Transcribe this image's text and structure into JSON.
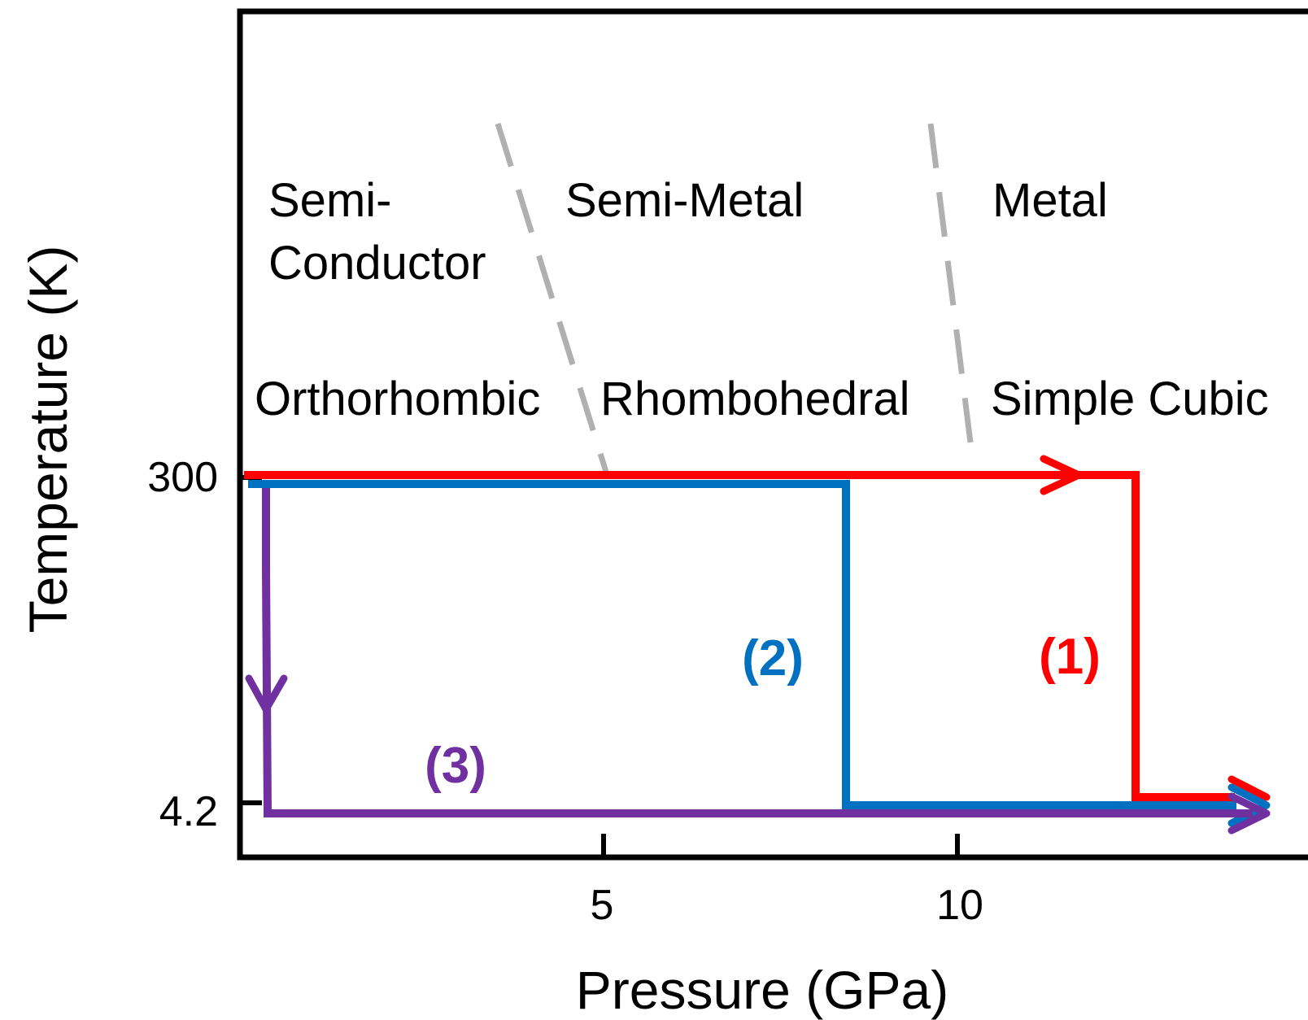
{
  "axes": {
    "x_title": "Pressure (GPa)",
    "y_title": "Temperature (K)",
    "x_ticks": [
      "5",
      "10"
    ],
    "y_ticks": [
      "300",
      "4.2"
    ]
  },
  "regions": {
    "electronic": {
      "semiconductor_line1": "Semi-",
      "semiconductor_line2": "Conductor",
      "semimetal": "Semi-Metal",
      "metal": "Metal"
    },
    "structural": {
      "orthorhombic": "Orthorhombic",
      "rhombohedral": "Rhombohedral",
      "simple_cubic": "Simple Cubic"
    }
  },
  "paths": [
    {
      "id": "1",
      "label": "(1)",
      "color": "#ff0000"
    },
    {
      "id": "2",
      "label": "(2)",
      "color": "#0070c0"
    },
    {
      "id": "3",
      "label": "(3)",
      "color": "#7030a0"
    }
  ],
  "colors": {
    "frame": "#000000",
    "boundary": "#b0b0b0"
  }
}
